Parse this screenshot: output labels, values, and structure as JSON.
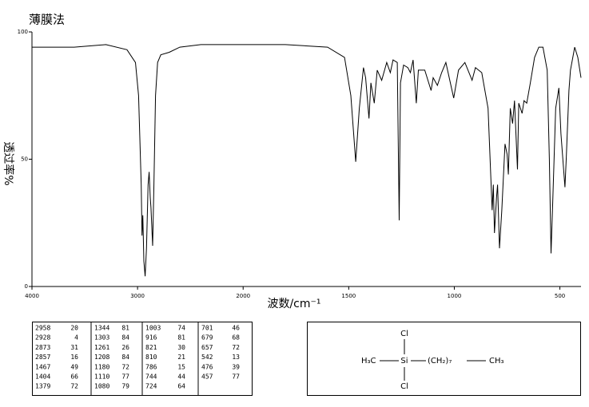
{
  "chart_data": {
    "type": "line",
    "title": "薄膜法",
    "x_label": "波数/cm⁻¹",
    "y_label": "透过率%",
    "xlim": [
      4000,
      400
    ],
    "xticks": [
      4000,
      3000,
      2000,
      1500,
      1000,
      500
    ],
    "ylim": [
      0,
      100
    ],
    "yticks": [
      0,
      50,
      100
    ],
    "x": [
      4000,
      3600,
      3300,
      3100,
      3020,
      2990,
      2965,
      2958,
      2950,
      2940,
      2928,
      2915,
      2900,
      2890,
      2880,
      2873,
      2857,
      2845,
      2830,
      2810,
      2780,
      2700,
      2600,
      2400,
      2000,
      1800,
      1600,
      1520,
      1490,
      1467,
      1450,
      1430,
      1420,
      1404,
      1395,
      1379,
      1365,
      1344,
      1320,
      1303,
      1290,
      1270,
      1261,
      1255,
      1240,
      1220,
      1208,
      1195,
      1180,
      1170,
      1140,
      1110,
      1100,
      1080,
      1060,
      1040,
      1003,
      980,
      950,
      916,
      900,
      870,
      840,
      821,
      815,
      810,
      800,
      795,
      786,
      775,
      760,
      750,
      744,
      735,
      724,
      715,
      701,
      695,
      679,
      670,
      657,
      640,
      620,
      600,
      580,
      560,
      550,
      542,
      535,
      520,
      505,
      495,
      476,
      470,
      457,
      450,
      430,
      415,
      400
    ],
    "series": [
      {
        "color": "#000000",
        "values": [
          94,
          94,
          95,
          93,
          88,
          75,
          40,
          20,
          28,
          10,
          4,
          15,
          40,
          45,
          35,
          31,
          16,
          40,
          75,
          88,
          91,
          92,
          94,
          95,
          95,
          95,
          94,
          90,
          75,
          49,
          70,
          86,
          82,
          66,
          80,
          72,
          85,
          81,
          88,
          84,
          89,
          88,
          26,
          80,
          87,
          86,
          84,
          89,
          72,
          85,
          85,
          77,
          82,
          79,
          84,
          88,
          74,
          85,
          88,
          81,
          86,
          84,
          70,
          30,
          40,
          21,
          35,
          40,
          15,
          30,
          56,
          52,
          44,
          70,
          64,
          73,
          46,
          72,
          68,
          73,
          72,
          80,
          90,
          94,
          94,
          85,
          50,
          13,
          30,
          70,
          78,
          60,
          39,
          50,
          77,
          85,
          94,
          90,
          82
        ]
      }
    ]
  },
  "peak_table": {
    "rows": [
      [
        2958,
        20,
        1344,
        81,
        1003,
        74,
        701,
        46
      ],
      [
        2928,
        4,
        1303,
        84,
        916,
        81,
        679,
        68
      ],
      [
        2873,
        31,
        1261,
        26,
        821,
        30,
        657,
        72
      ],
      [
        2857,
        16,
        1208,
        84,
        810,
        21,
        542,
        13
      ],
      [
        1467,
        49,
        1180,
        72,
        786,
        15,
        476,
        39
      ],
      [
        1404,
        66,
        1110,
        77,
        744,
        44,
        457,
        77
      ],
      [
        1379,
        72,
        1080,
        79,
        724,
        64
      ]
    ]
  },
  "structure": {
    "top": "Cl",
    "bottom": "Cl",
    "left": "H₃C",
    "center": "Si",
    "chain": "(CH₂)₇",
    "right": "CH₃"
  }
}
